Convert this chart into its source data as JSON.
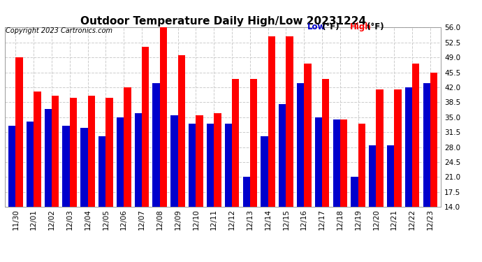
{
  "title": "Outdoor Temperature Daily High/Low 20231224",
  "copyright": "Copyright 2023 Cartronics.com",
  "dates": [
    "11/30",
    "12/01",
    "12/02",
    "12/03",
    "12/04",
    "12/05",
    "12/06",
    "12/07",
    "12/08",
    "12/09",
    "12/10",
    "12/11",
    "12/12",
    "12/13",
    "12/14",
    "12/15",
    "12/16",
    "12/17",
    "12/18",
    "12/19",
    "12/20",
    "12/21",
    "12/22",
    "12/23"
  ],
  "highs": [
    49.0,
    41.0,
    40.0,
    39.5,
    40.0,
    39.5,
    42.0,
    51.5,
    56.0,
    49.5,
    35.5,
    36.0,
    44.0,
    44.0,
    54.0,
    54.0,
    47.5,
    44.0,
    34.5,
    33.5,
    41.5,
    41.5,
    47.5,
    45.5
  ],
  "lows": [
    33.0,
    34.0,
    37.0,
    33.0,
    32.5,
    30.5,
    35.0,
    36.0,
    43.0,
    35.5,
    33.5,
    33.5,
    33.5,
    21.0,
    30.5,
    38.0,
    43.0,
    35.0,
    34.5,
    21.0,
    28.5,
    28.5,
    42.0,
    43.0
  ],
  "bar_color_high": "#ff0000",
  "bar_color_low": "#0000cc",
  "ylim_min": 14.0,
  "ylim_max": 56.0,
  "yticks": [
    14.0,
    17.5,
    21.0,
    24.5,
    28.0,
    31.5,
    35.0,
    38.5,
    42.0,
    45.5,
    49.0,
    52.5,
    56.0
  ],
  "grid_color": "#cccccc",
  "bg_color": "#ffffff",
  "title_fontsize": 11,
  "tick_fontsize": 7.5,
  "copyright_fontsize": 7,
  "legend_fontsize": 8.5
}
